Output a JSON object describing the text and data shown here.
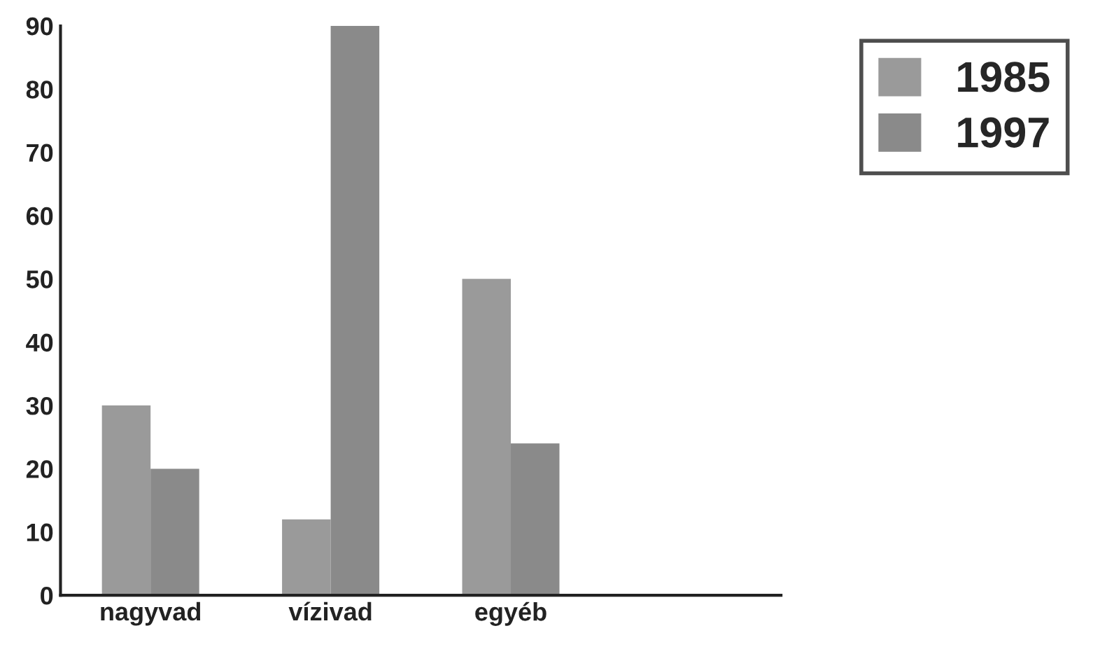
{
  "chart_data": {
    "type": "bar",
    "categories": [
      "nagyvad",
      "vízivad",
      "egyéb",
      null
    ],
    "series": [
      {
        "name": "1985",
        "color": "#9a9a9a",
        "values": [
          30,
          12,
          50,
          null
        ]
      },
      {
        "name": "1997",
        "color": "#8a8a8a",
        "values": [
          20,
          90,
          24,
          null
        ]
      }
    ],
    "ylim": [
      0,
      90
    ],
    "yticks": [
      0,
      10,
      20,
      30,
      40,
      50,
      60,
      70,
      80,
      90
    ],
    "grid": false,
    "legend": "top right"
  }
}
